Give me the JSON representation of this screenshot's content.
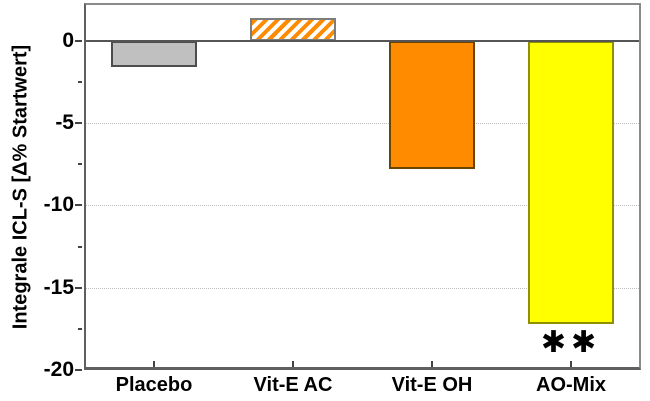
{
  "figure": {
    "background": "#ffffff"
  },
  "chart_data": {
    "type": "bar",
    "title": "",
    "xlabel": "",
    "ylabel": "Integrale ICL-S [Δ% Startwert]",
    "categories": [
      "Placebo",
      "Vit-E AC",
      "Vit-E OH",
      "AO-Mix"
    ],
    "values": [
      -1.6,
      1.4,
      -7.8,
      -17.2
    ],
    "bar_styles": [
      {
        "name": "placebo-bar",
        "fill": "#c0c0c0",
        "border": "#4d4d4d",
        "hatch": false,
        "hatch_color": null
      },
      {
        "name": "vit-e-ac-bar",
        "fill": "#ffffff",
        "border": "#7d7d7d",
        "hatch": true,
        "hatch_color": "#ff8c00"
      },
      {
        "name": "vit-e-oh-bar",
        "fill": "#ff8c00",
        "border": "#6b4400",
        "hatch": false,
        "hatch_color": null
      },
      {
        "name": "ao-mix-bar",
        "fill": "#ffff00",
        "border": "#8f8f00",
        "hatch": false,
        "hatch_color": null
      }
    ],
    "ylim": [
      -20,
      2.3
    ],
    "yticks": [
      0,
      -5,
      -10,
      -15,
      -20
    ],
    "ytick_labels": [
      "0",
      "-5",
      "-10",
      "-15",
      "-20"
    ],
    "minor_yticks": [
      -2.5,
      -7.5,
      -12.5,
      -17.5
    ],
    "gridlines": [
      -5,
      -10,
      -15
    ],
    "grid_style": "dotted",
    "legend_position": "none",
    "annotations": [
      {
        "text": "✱✱",
        "category": "AO-Mix",
        "category_index": 3,
        "meaning": "significance-marker"
      }
    ]
  },
  "colors": {
    "axis_frame": "#8a8a8a",
    "axis_main": "#5f5f5f",
    "zero_line": "#555555",
    "grid": "#bfbfbf",
    "text": "#000000"
  }
}
